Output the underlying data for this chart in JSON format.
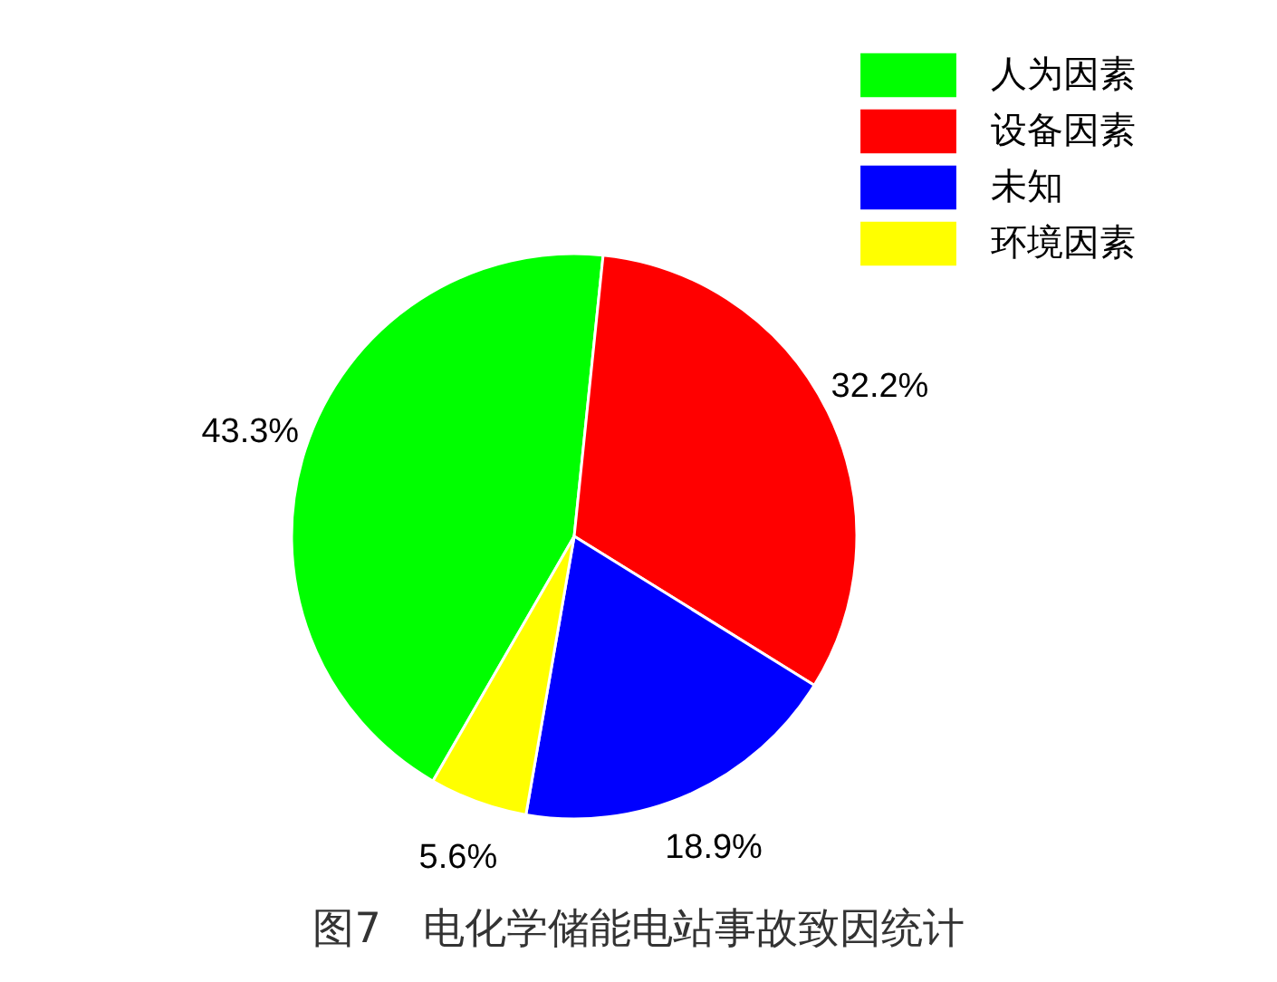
{
  "chart_data": {
    "type": "pie",
    "title": "图7　电化学储能电站事故致因统计",
    "categories": [
      "人为因素",
      "设备因素",
      "未知",
      "环境因素"
    ],
    "values": [
      43.3,
      32.2,
      18.9,
      5.6
    ],
    "colors": [
      "#00ff00",
      "#ff0000",
      "#0000ff",
      "#ffff00"
    ],
    "value_labels": [
      "43.3%",
      "32.2%",
      "18.9%",
      "5.6%"
    ],
    "legend": "top right"
  }
}
